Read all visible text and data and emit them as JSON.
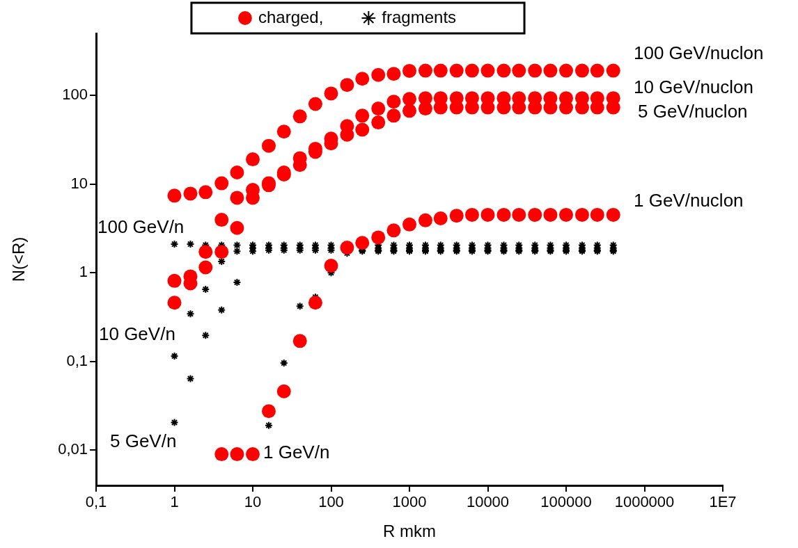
{
  "chart_data": {
    "type": "scatter",
    "xlabel": "R mkm",
    "ylabel": "N(<R)",
    "log": "xy",
    "xlim": [
      0.1,
      10000000
    ],
    "ylim": [
      0.004,
      500
    ],
    "xticks": [
      {
        "value": 0.1,
        "label": "0,1"
      },
      1,
      10,
      100,
      1000,
      10000,
      100000,
      1000000,
      {
        "value": 10000000,
        "label": "1E7"
      }
    ],
    "yticks": [
      {
        "value": 0.01,
        "label": "0,01"
      },
      {
        "value": 0.1,
        "label": "0,1"
      },
      1,
      10,
      100
    ],
    "legend": "top",
    "series": [
      {
        "name": "charged,",
        "color": "#ff0000",
        "marker": "circle",
        "x": [
          1,
          1.6,
          2.5,
          4,
          6.3,
          10,
          16,
          25,
          40,
          63,
          100,
          160,
          250,
          400,
          630,
          1000,
          1600,
          2500,
          4000,
          6300,
          10000,
          16000,
          25000,
          40000,
          63000,
          100000,
          160000,
          250000,
          400000,
          1,
          1.6,
          2.5,
          4,
          6.3,
          10,
          16,
          25,
          40,
          63,
          100,
          160,
          250,
          400,
          630,
          1000,
          1600,
          2500,
          4000,
          6300,
          10000,
          16000,
          25000,
          40000,
          63000,
          100000,
          160000,
          250000,
          400000,
          1,
          1.6,
          2.5,
          4,
          6.3,
          10,
          16,
          25,
          40,
          63,
          100,
          160,
          250,
          400,
          630,
          1000,
          1600,
          2500,
          4000,
          6300,
          10000,
          16000,
          25000,
          40000,
          63000,
          100000,
          160000,
          250000,
          400000,
          4,
          6.3,
          10,
          16,
          25,
          40,
          63,
          100,
          160,
          250,
          400,
          630,
          1000,
          1600,
          2500,
          4000,
          6300,
          10000,
          16000,
          25000,
          40000,
          63000,
          100000,
          160000,
          250000,
          400000
        ],
        "values": [
          7.4,
          7.8,
          8.1,
          10.2,
          13.5,
          19,
          27,
          39,
          58,
          80,
          105,
          131,
          154,
          170,
          175,
          189,
          190,
          190,
          190,
          190,
          190,
          190,
          190,
          190,
          190,
          190,
          190,
          190,
          190,
          0.81,
          0.91,
          1.72,
          3.95,
          7,
          8.6,
          10.2,
          13.5,
          19.6,
          25,
          32.6,
          45,
          59,
          71,
          85,
          91,
          93,
          93,
          93,
          93,
          93,
          93,
          93,
          93,
          93,
          93,
          93,
          93,
          93,
          0.46,
          0.76,
          1.15,
          1.72,
          3.2,
          7,
          9.7,
          12.8,
          16.4,
          23,
          28.7,
          36,
          41,
          49.5,
          59,
          67,
          71,
          73,
          73,
          73,
          73,
          73,
          73,
          73,
          73,
          73,
          73,
          73,
          73,
          0.009,
          0.009,
          0.009,
          0.0275,
          0.046,
          0.17,
          0.46,
          1.2,
          1.92,
          2.17,
          2.5,
          3,
          3.5,
          3.9,
          4.1,
          4.4,
          4.5,
          4.5,
          4.5,
          4.5,
          4.5,
          4.5,
          4.5,
          4.5,
          4.5,
          4.5
        ]
      },
      {
        "name": "fragments",
        "color": "#000000",
        "marker": "cross",
        "x": [
          1,
          1.6,
          2.5,
          4,
          6.3,
          10,
          16,
          25,
          40,
          63,
          100,
          160,
          250,
          400,
          630,
          1000,
          1600,
          2500,
          4000,
          6300,
          10000,
          16000,
          25000,
          40000,
          63000,
          100000,
          160000,
          250000,
          400000,
          1,
          1.6,
          2.5,
          4,
          6.3,
          10,
          16,
          25,
          40,
          63,
          100,
          160,
          250,
          400,
          630,
          1000,
          1600,
          2500,
          4000,
          6300,
          10000,
          16000,
          25000,
          40000,
          63000,
          100000,
          160000,
          250000,
          400000,
          1,
          1.6,
          2.5,
          4,
          6.3,
          10,
          16,
          25,
          40,
          63,
          100,
          160,
          250,
          400,
          630,
          1000,
          1600,
          2500,
          4000,
          6300,
          10000,
          16000,
          25000,
          40000,
          63000,
          100000,
          160000,
          250000,
          400000,
          16,
          25,
          40,
          63,
          100,
          160,
          250,
          400,
          630,
          1000,
          1600,
          2500,
          4000,
          6300,
          10000,
          16000,
          25000,
          40000,
          63000,
          100000,
          160000,
          250000,
          400000
        ],
        "values": [
          2.1,
          2.1,
          2.05,
          2.05,
          2.05,
          2.05,
          2.05,
          2.05,
          2.05,
          2.05,
          2.05,
          null,
          null,
          2.05,
          2.05,
          2.05,
          2.05,
          2.05,
          2.05,
          2.05,
          2.05,
          2.05,
          2.05,
          2.05,
          2.05,
          2.05,
          2.05,
          2.05,
          2.05,
          0.115,
          0.345,
          0.65,
          1.34,
          1.75,
          1.9,
          1.9,
          1.9,
          1.9,
          1.9,
          1.9,
          null,
          1.9,
          1.9,
          1.9,
          1.9,
          1.9,
          1.9,
          1.9,
          1.9,
          1.9,
          1.9,
          1.9,
          1.9,
          1.9,
          1.9,
          1.9,
          1.9,
          1.9,
          0.0205,
          0.064,
          0.197,
          0.38,
          0.78,
          1.75,
          1.8,
          1.8,
          1.8,
          1.8,
          1.8,
          null,
          1.8,
          1.8,
          1.8,
          1.8,
          1.8,
          1.8,
          1.8,
          1.8,
          1.8,
          1.8,
          1.8,
          1.8,
          1.8,
          1.8,
          1.8,
          1.8,
          1.8,
          0.019,
          0.096,
          0.42,
          0.53,
          1,
          1.66,
          1.75,
          1.75,
          1.75,
          1.75,
          1.75,
          1.75,
          1.75,
          1.75,
          1.75,
          1.75,
          1.75,
          1.75,
          1.75,
          1.75,
          1.75,
          1.75,
          1.75
        ]
      }
    ],
    "annotations": [
      "100 GeV/nuclon",
      "10 GeV/nuclon",
      "5 GeV/nuclon",
      "1 GeV/nuclon",
      "100 GeV/n",
      "10 GeV/n",
      "5 GeV/n",
      "1 GeV/n"
    ]
  }
}
